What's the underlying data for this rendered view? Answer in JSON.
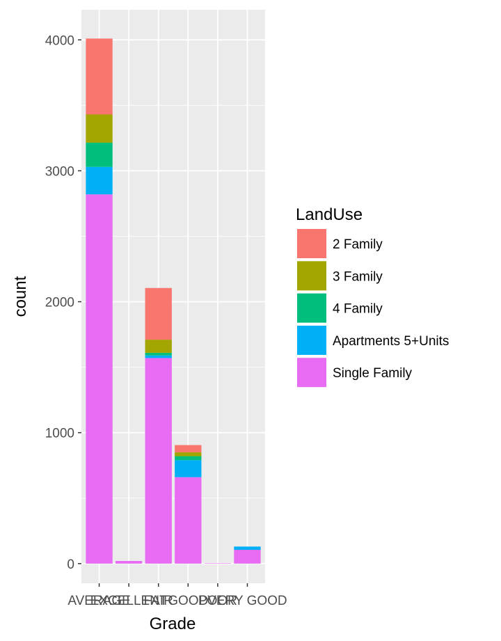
{
  "chart_data": {
    "type": "bar",
    "stacked": true,
    "categories": [
      "AVERAGE",
      "EXCELLENT",
      "FAIR",
      "GOOD",
      "POOR",
      "VERY GOOD"
    ],
    "series": [
      {
        "name": "2 Family",
        "color": "#F8766D",
        "values": [
          580,
          0,
          395,
          55,
          0,
          0
        ]
      },
      {
        "name": "3 Family",
        "color": "#A3A500",
        "values": [
          215,
          0,
          100,
          30,
          0,
          0
        ]
      },
      {
        "name": "4 Family",
        "color": "#00BF7D",
        "values": [
          185,
          0,
          20,
          30,
          0,
          0
        ]
      },
      {
        "name": "Apartments 5+Units",
        "color": "#00B0F6",
        "values": [
          210,
          0,
          20,
          130,
          0,
          25
        ]
      },
      {
        "name": "Single Family",
        "color": "#E76BF3",
        "values": [
          2820,
          20,
          1570,
          660,
          3,
          105
        ]
      }
    ],
    "xlabel": "Grade",
    "ylabel": "count",
    "ylim": [
      -150,
      4230
    ],
    "yticks": [
      0,
      1000,
      2000,
      3000,
      4000
    ],
    "grid": true,
    "legend": {
      "title": "LandUse",
      "position": "right"
    }
  }
}
